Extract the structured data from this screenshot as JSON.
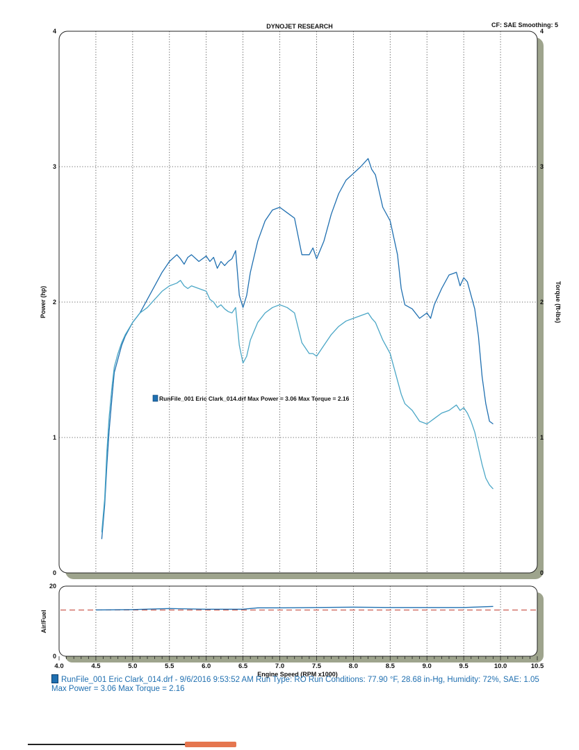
{
  "chart_data": {
    "type": "line",
    "title": "DYNOJET RESEARCH",
    "settings_label": "CF: SAE  Smoothing: 5",
    "xlabel": "Engine Speed (RPM x1000)",
    "xlim": [
      4.0,
      10.5
    ],
    "x_ticks": [
      "4.0",
      "4.5",
      "5.0",
      "5.5",
      "6.0",
      "6.5",
      "7.0",
      "7.5",
      "8.0",
      "8.5",
      "9.0",
      "9.5",
      "10.0",
      "10.5"
    ],
    "main_panel": {
      "ylabel_left": "Power (hp)",
      "ylabel_right": "Torque (ft-lbs)",
      "ylim": [
        0,
        4
      ],
      "y_ticks": [
        "0",
        "1",
        "2",
        "3",
        "4"
      ],
      "legend_text": "RunFile_001 Eric Clark_014.drf Max Power = 3.06     Max Torque = 2.16",
      "series": [
        {
          "name": "Power",
          "color": "#1f6fb0",
          "x": [
            4.58,
            4.62,
            4.65,
            4.68,
            4.72,
            4.75,
            4.8,
            4.85,
            4.9,
            5.0,
            5.1,
            5.2,
            5.3,
            5.4,
            5.5,
            5.6,
            5.65,
            5.7,
            5.75,
            5.8,
            5.9,
            6.0,
            6.05,
            6.1,
            6.15,
            6.2,
            6.25,
            6.3,
            6.35,
            6.4,
            6.45,
            6.5,
            6.55,
            6.6,
            6.7,
            6.8,
            6.9,
            7.0,
            7.1,
            7.2,
            7.3,
            7.4,
            7.45,
            7.5,
            7.6,
            7.7,
            7.8,
            7.9,
            8.0,
            8.1,
            8.2,
            8.25,
            8.3,
            8.4,
            8.5,
            8.6,
            8.65,
            8.7,
            8.8,
            8.9,
            9.0,
            9.05,
            9.1,
            9.2,
            9.3,
            9.4,
            9.45,
            9.5,
            9.55,
            9.6,
            9.65,
            9.7,
            9.75,
            9.8,
            9.85,
            9.9
          ],
          "values": [
            0.25,
            0.5,
            0.8,
            1.05,
            1.3,
            1.48,
            1.58,
            1.68,
            1.75,
            1.85,
            1.92,
            2.02,
            2.12,
            2.22,
            2.3,
            2.35,
            2.32,
            2.28,
            2.33,
            2.35,
            2.3,
            2.34,
            2.3,
            2.33,
            2.25,
            2.3,
            2.27,
            2.3,
            2.32,
            2.38,
            2.05,
            1.96,
            2.05,
            2.22,
            2.45,
            2.6,
            2.68,
            2.7,
            2.66,
            2.62,
            2.35,
            2.35,
            2.4,
            2.32,
            2.45,
            2.65,
            2.8,
            2.9,
            2.95,
            3.0,
            3.06,
            2.98,
            2.94,
            2.7,
            2.6,
            2.35,
            2.1,
            1.98,
            1.95,
            1.88,
            1.92,
            1.88,
            1.98,
            2.1,
            2.2,
            2.22,
            2.12,
            2.18,
            2.15,
            2.05,
            1.95,
            1.75,
            1.45,
            1.25,
            1.12,
            1.1
          ]
        },
        {
          "name": "Torque",
          "color": "#4aa6c6",
          "x": [
            4.58,
            4.62,
            4.65,
            4.68,
            4.72,
            4.75,
            4.8,
            4.85,
            4.9,
            5.0,
            5.1,
            5.2,
            5.3,
            5.4,
            5.5,
            5.6,
            5.65,
            5.7,
            5.75,
            5.8,
            5.9,
            6.0,
            6.05,
            6.1,
            6.15,
            6.2,
            6.25,
            6.3,
            6.35,
            6.4,
            6.45,
            6.5,
            6.55,
            6.6,
            6.7,
            6.8,
            6.9,
            7.0,
            7.1,
            7.2,
            7.3,
            7.4,
            7.45,
            7.5,
            7.6,
            7.7,
            7.8,
            7.9,
            8.0,
            8.1,
            8.2,
            8.25,
            8.3,
            8.4,
            8.5,
            8.6,
            8.65,
            8.7,
            8.8,
            8.9,
            9.0,
            9.05,
            9.1,
            9.2,
            9.3,
            9.4,
            9.45,
            9.5,
            9.55,
            9.6,
            9.65,
            9.7,
            9.75,
            9.8,
            9.85,
            9.9
          ],
          "values": [
            0.3,
            0.55,
            0.9,
            1.15,
            1.38,
            1.52,
            1.62,
            1.7,
            1.76,
            1.85,
            1.92,
            1.96,
            2.02,
            2.08,
            2.12,
            2.14,
            2.16,
            2.12,
            2.1,
            2.12,
            2.1,
            2.08,
            2.02,
            2.0,
            1.96,
            1.98,
            1.95,
            1.93,
            1.92,
            1.96,
            1.68,
            1.55,
            1.6,
            1.72,
            1.85,
            1.92,
            1.96,
            1.98,
            1.96,
            1.92,
            1.7,
            1.62,
            1.62,
            1.6,
            1.68,
            1.76,
            1.82,
            1.86,
            1.88,
            1.9,
            1.92,
            1.88,
            1.85,
            1.72,
            1.62,
            1.42,
            1.32,
            1.25,
            1.2,
            1.12,
            1.1,
            1.12,
            1.14,
            1.18,
            1.2,
            1.24,
            1.2,
            1.22,
            1.18,
            1.12,
            1.04,
            0.92,
            0.8,
            0.7,
            0.65,
            0.62
          ]
        }
      ]
    },
    "af_panel": {
      "ylabel": "Air/Fuel",
      "ylim": [
        0,
        20
      ],
      "y_ticks": [
        "0",
        "20"
      ],
      "reference_value": 13.2,
      "reference_color": "#c0392b",
      "series": [
        {
          "name": "Air/Fuel",
          "color": "#1f6fb0",
          "x": [
            4.5,
            5.0,
            5.5,
            6.0,
            6.5,
            6.7,
            7.0,
            7.5,
            8.0,
            8.5,
            9.0,
            9.5,
            9.9
          ],
          "values": [
            13.2,
            13.3,
            13.6,
            13.4,
            13.4,
            13.8,
            13.8,
            13.9,
            14.0,
            13.9,
            13.9,
            13.9,
            14.2
          ]
        }
      ]
    }
  },
  "footer": {
    "line1": "RunFile_001 Eric Clark_014.drf - 9/6/2016 9:53:52 AM  Run Type: RO  Run Conditions: 77.90 °F, 28.68 in-Hg,  Humidity:  72%, SAE: 1.05",
    "line2": "Max Power = 3.06  Max Torque = 2.16"
  }
}
